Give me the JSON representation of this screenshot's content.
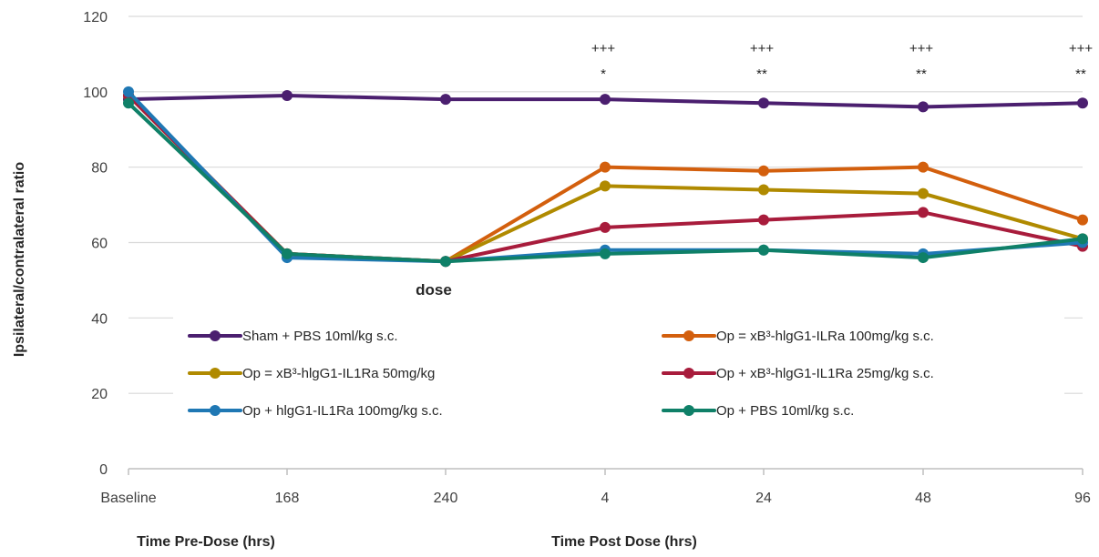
{
  "chart_data": {
    "type": "line",
    "title": "",
    "ylabel": "Ipsilateral/contralateral ratio",
    "ylim": [
      0,
      120
    ],
    "yticks": [
      0,
      20,
      40,
      60,
      80,
      100,
      120
    ],
    "grid": true,
    "legend_position": "lower-center",
    "x_categories": [
      "Baseline",
      "168",
      "240",
      "4",
      "24",
      "48",
      "96"
    ],
    "x_group_labels": [
      {
        "label": "Time Pre-Dose (hrs)",
        "category_start": 0
      },
      {
        "label": "Time Post Dose (hrs)",
        "category_start": 3
      }
    ],
    "dose_label": "dose",
    "dose_category_index": 2,
    "series": [
      {
        "name": "Sham + PBS 10ml/kg s.c.",
        "color": "#4b1f6f",
        "values": [
          98,
          99,
          98,
          98,
          97,
          96,
          97
        ]
      },
      {
        "name": "Op = xB³-hlgG1-ILRa 100mg/kg s.c.",
        "color": "#d35f0d",
        "values": [
          99,
          57,
          55,
          80,
          79,
          80,
          66
        ]
      },
      {
        "name": "Op = xB³-hlgG1-IL1Ra 50mg/kg",
        "color": "#b08a00",
        "values": [
          99,
          57,
          55,
          75,
          74,
          73,
          61
        ]
      },
      {
        "name": "Op + xB³-hlgG1-IL1Ra 25mg/kg s.c.",
        "color": "#a81c3c",
        "values": [
          99,
          57,
          55,
          64,
          66,
          68,
          59
        ]
      },
      {
        "name": "Op + hlgG1-IL1Ra 100mg/kg s.c.",
        "color": "#1f78b4",
        "values": [
          100,
          56,
          55,
          58,
          58,
          57,
          60
        ]
      },
      {
        "name": "Op + PBS 10ml/kg s.c.",
        "color": "#0f8068",
        "values": [
          97,
          57,
          55,
          57,
          58,
          56,
          61
        ]
      }
    ],
    "annotations": [
      {
        "category_index": 3,
        "lines": [
          "+++",
          "*"
        ]
      },
      {
        "category_index": 4,
        "lines": [
          "+++",
          "**"
        ]
      },
      {
        "category_index": 5,
        "lines": [
          "+++",
          "**"
        ]
      },
      {
        "category_index": 6,
        "lines": [
          "+++",
          "**"
        ]
      }
    ]
  }
}
